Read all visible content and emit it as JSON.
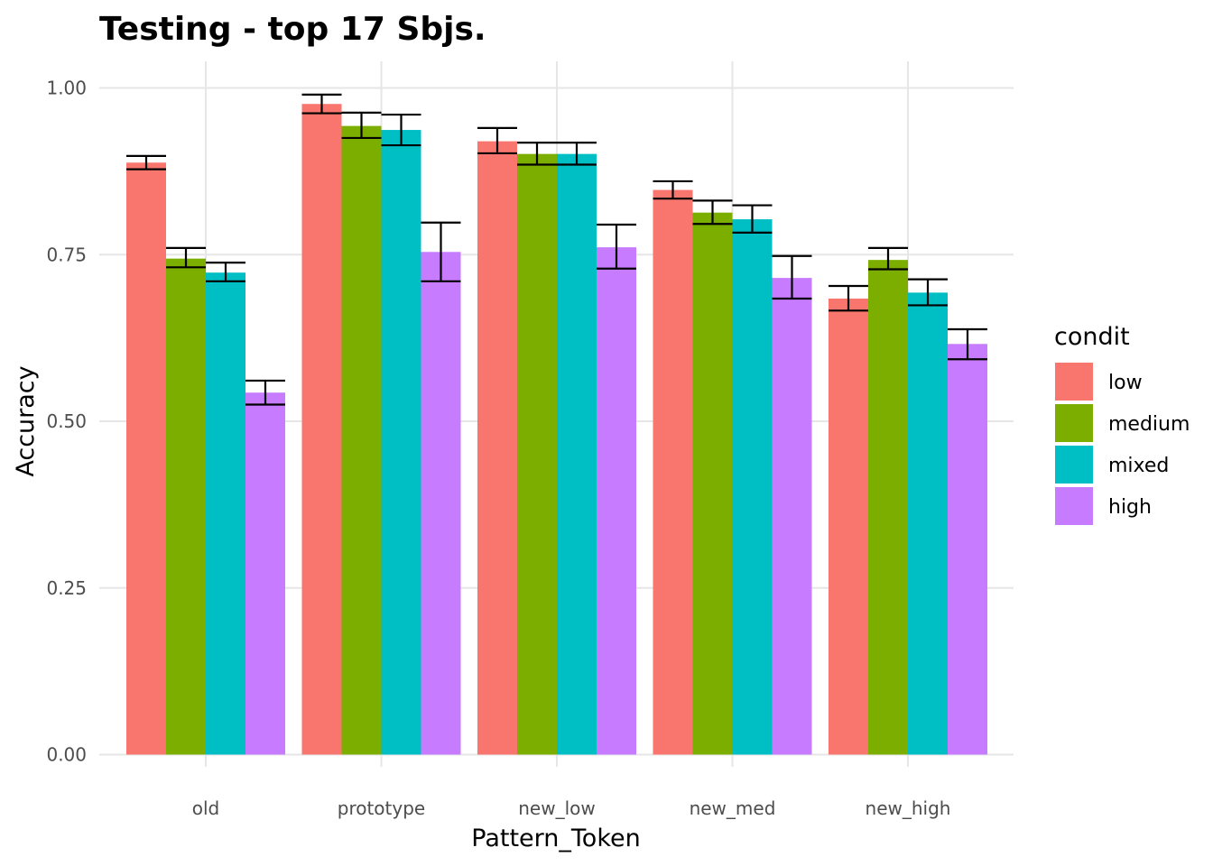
{
  "chart_data": {
    "type": "bar",
    "title": "Testing - top 17 Sbjs.",
    "xlabel": "Pattern_Token",
    "ylabel": "Accuracy",
    "categories": [
      "old",
      "prototype",
      "new_low",
      "new_med",
      "new_high"
    ],
    "ylim": [
      0,
      1
    ],
    "yticks": [
      0.0,
      0.25,
      0.5,
      0.75,
      1.0
    ],
    "ytick_labels": [
      "0.00",
      "0.25",
      "0.50",
      "0.75",
      "1.00"
    ],
    "grid": true,
    "legend": {
      "title": "condit",
      "position": "right"
    },
    "series": [
      {
        "name": "low",
        "color": "#F8766D",
        "values": [
          0.888,
          0.976,
          0.92,
          0.847,
          0.684
        ],
        "err_low": [
          0.878,
          0.962,
          0.902,
          0.834,
          0.666
        ],
        "err_high": [
          0.898,
          0.99,
          0.94,
          0.86,
          0.703
        ]
      },
      {
        "name": "medium",
        "color": "#7CAE00",
        "values": [
          0.744,
          0.943,
          0.901,
          0.813,
          0.742
        ],
        "err_low": [
          0.731,
          0.925,
          0.885,
          0.796,
          0.728
        ],
        "err_high": [
          0.76,
          0.963,
          0.918,
          0.831,
          0.76
        ]
      },
      {
        "name": "mixed",
        "color": "#00BFC4",
        "values": [
          0.723,
          0.937,
          0.901,
          0.803,
          0.693
        ],
        "err_low": [
          0.71,
          0.914,
          0.885,
          0.783,
          0.674
        ],
        "err_high": [
          0.738,
          0.96,
          0.918,
          0.824,
          0.713
        ]
      },
      {
        "name": "high",
        "color": "#C77CFF",
        "values": [
          0.543,
          0.754,
          0.761,
          0.715,
          0.616
        ],
        "err_low": [
          0.525,
          0.71,
          0.729,
          0.684,
          0.593
        ],
        "err_high": [
          0.561,
          0.798,
          0.795,
          0.748,
          0.638
        ]
      }
    ]
  }
}
